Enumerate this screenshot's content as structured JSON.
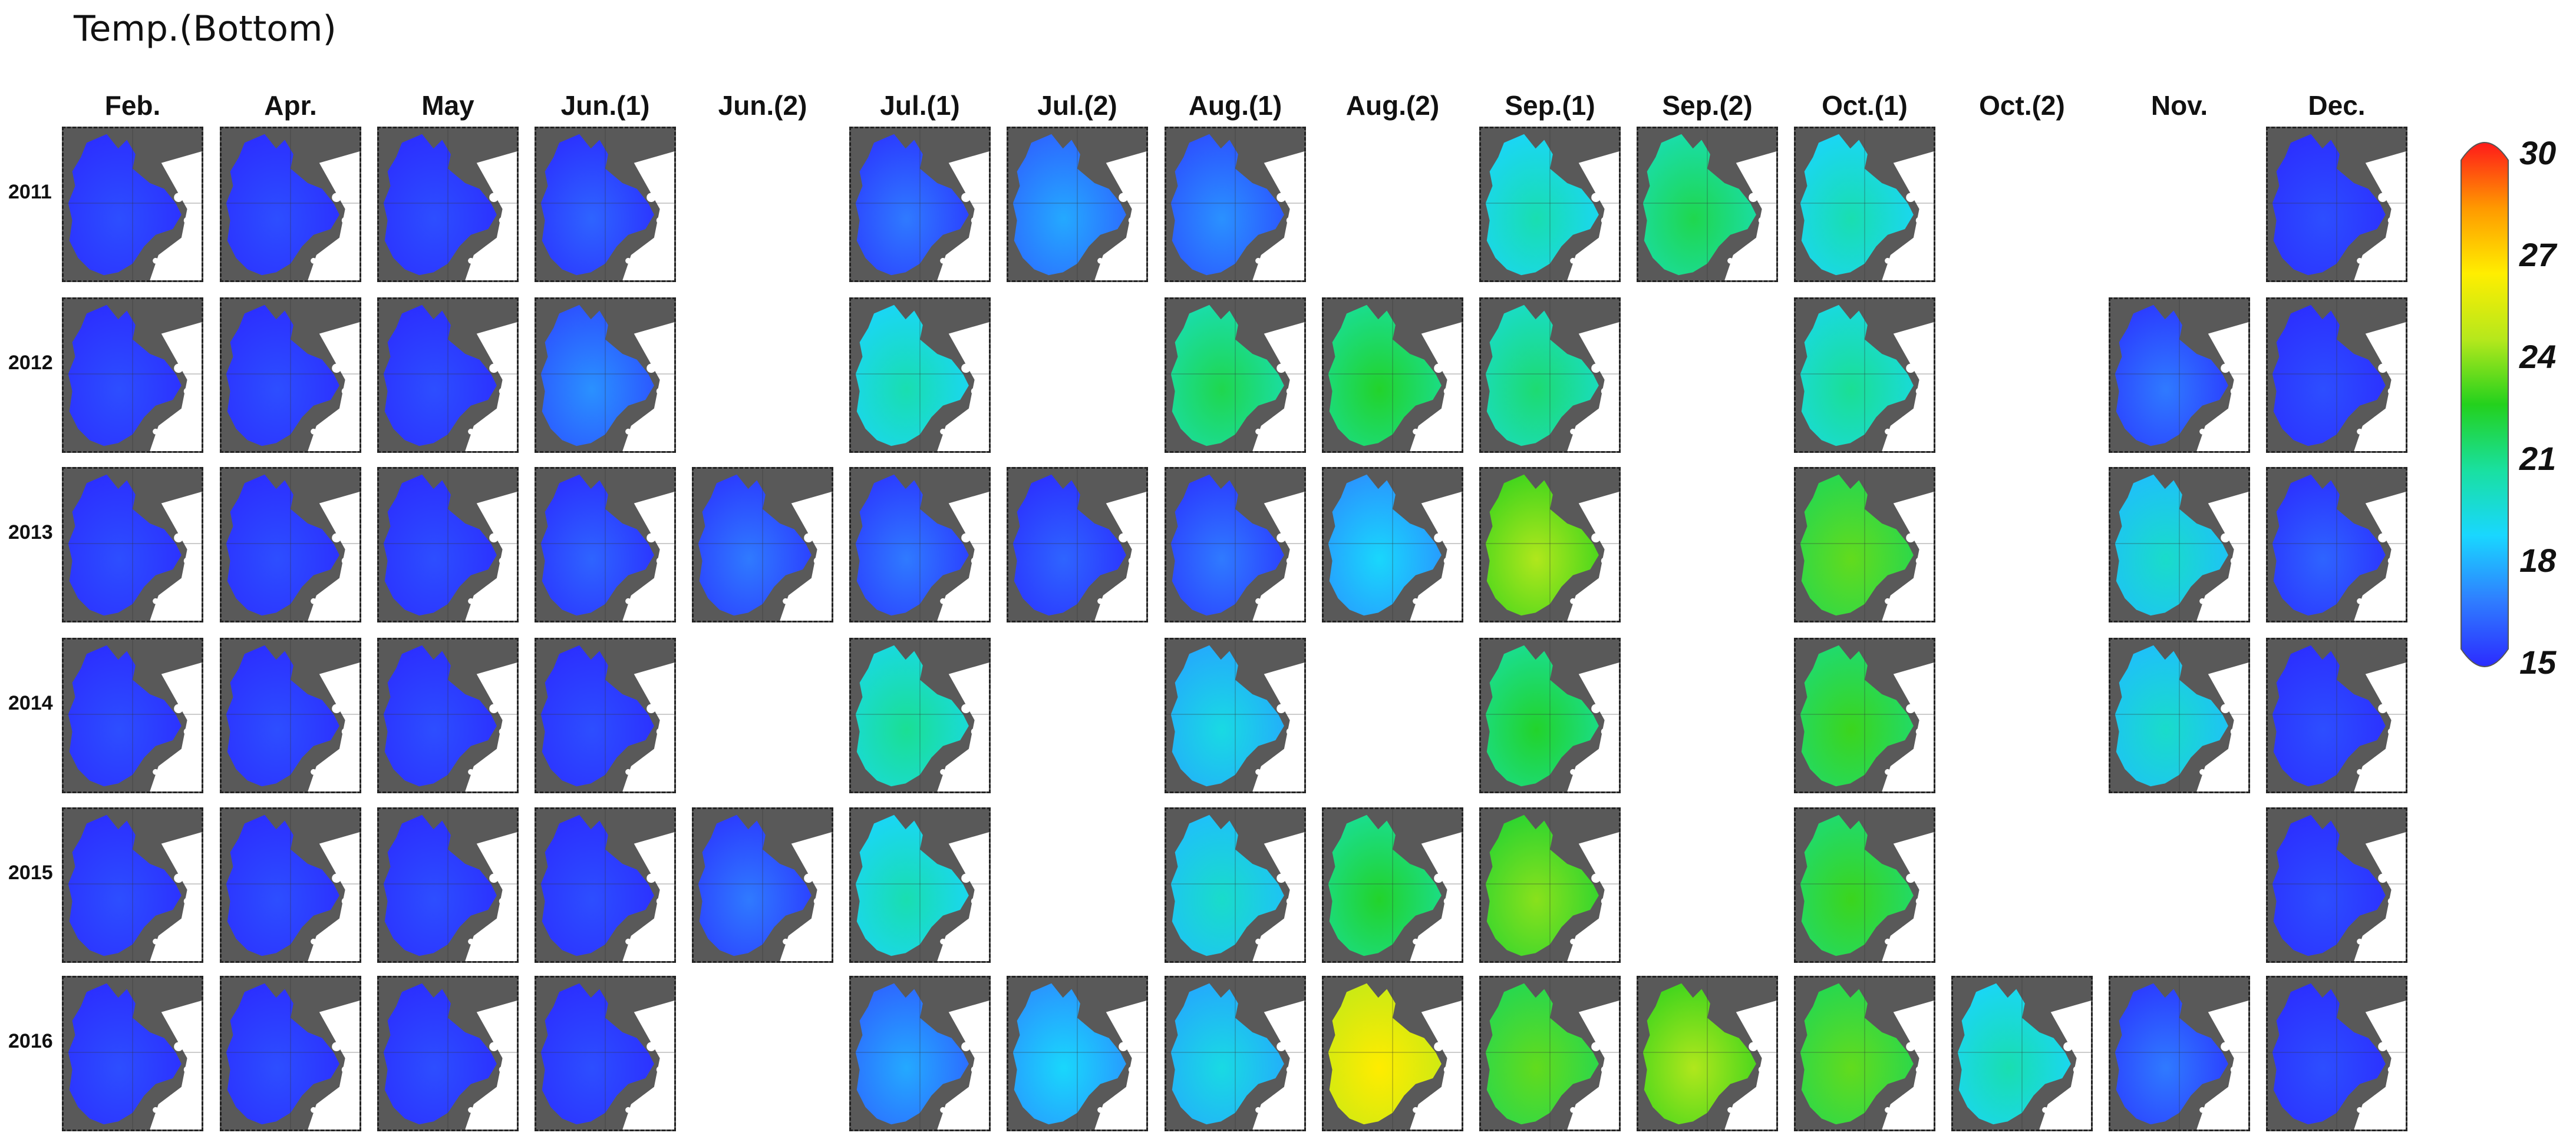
{
  "title": "Temp.(Bottom)",
  "columns": [
    "Feb.",
    "Apr.",
    "May",
    "Jun.(1)",
    "Jun.(2)",
    "Jul.(1)",
    "Jul.(2)",
    "Aug.(1)",
    "Aug.(2)",
    "Sep.(1)",
    "Sep.(2)",
    "Oct.(1)",
    "Oct.(2)",
    "Nov.",
    "Dec."
  ],
  "rows": [
    {
      "year": "2011",
      "present": [
        1,
        1,
        1,
        1,
        0,
        1,
        1,
        1,
        0,
        1,
        1,
        1,
        0,
        0,
        1
      ],
      "temps": [
        15,
        15,
        15,
        15.5,
        null,
        16,
        17,
        16.5,
        null,
        19.5,
        21,
        19.5,
        null,
        null,
        15
      ]
    },
    {
      "year": "2012",
      "present": [
        1,
        1,
        1,
        1,
        0,
        1,
        0,
        1,
        1,
        1,
        0,
        1,
        0,
        1,
        1
      ],
      "temps": [
        15,
        15,
        15,
        16.5,
        null,
        19.5,
        null,
        21,
        21.5,
        20.5,
        null,
        20,
        null,
        16,
        15
      ]
    },
    {
      "year": "2013",
      "present": [
        1,
        1,
        1,
        1,
        1,
        1,
        1,
        1,
        1,
        1,
        0,
        1,
        0,
        1,
        1
      ],
      "temps": [
        15,
        15,
        15,
        15.5,
        16,
        16,
        15.5,
        16,
        18,
        23.5,
        null,
        22.5,
        null,
        19,
        15.5
      ]
    },
    {
      "year": "2014",
      "present": [
        1,
        1,
        1,
        1,
        0,
        1,
        0,
        1,
        0,
        1,
        0,
        1,
        0,
        1,
        1
      ],
      "temps": [
        15,
        15,
        15,
        15,
        null,
        20,
        null,
        18.5,
        null,
        21.5,
        null,
        22,
        null,
        19,
        15
      ]
    },
    {
      "year": "2015",
      "present": [
        1,
        1,
        1,
        1,
        1,
        1,
        0,
        1,
        1,
        1,
        0,
        1,
        0,
        0,
        1
      ],
      "temps": [
        15,
        15,
        15,
        15,
        16,
        19.5,
        null,
        19,
        21.5,
        23,
        null,
        22,
        null,
        null,
        15
      ]
    },
    {
      "year": "2016",
      "present": [
        1,
        1,
        1,
        1,
        0,
        1,
        1,
        1,
        1,
        1,
        1,
        1,
        1,
        1,
        1
      ],
      "temps": [
        15,
        15,
        15,
        15,
        null,
        17,
        18,
        18.5,
        25.5,
        22.5,
        23.5,
        22.5,
        19.5,
        16,
        15
      ]
    }
  ],
  "colorbar": {
    "min": 15,
    "max": 30,
    "ticks": [
      "30",
      "27",
      "24",
      "21",
      "18",
      "15"
    ],
    "stops": [
      "#2b2bff",
      "#2f7dff",
      "#19d7ff",
      "#19e0a0",
      "#23d11d",
      "#b6e81c",
      "#ffee00",
      "#ff9900",
      "#ff1a1a"
    ]
  },
  "colors": {
    "land": "#595959",
    "water_void": "#ffffff",
    "frame": "#222222"
  }
}
